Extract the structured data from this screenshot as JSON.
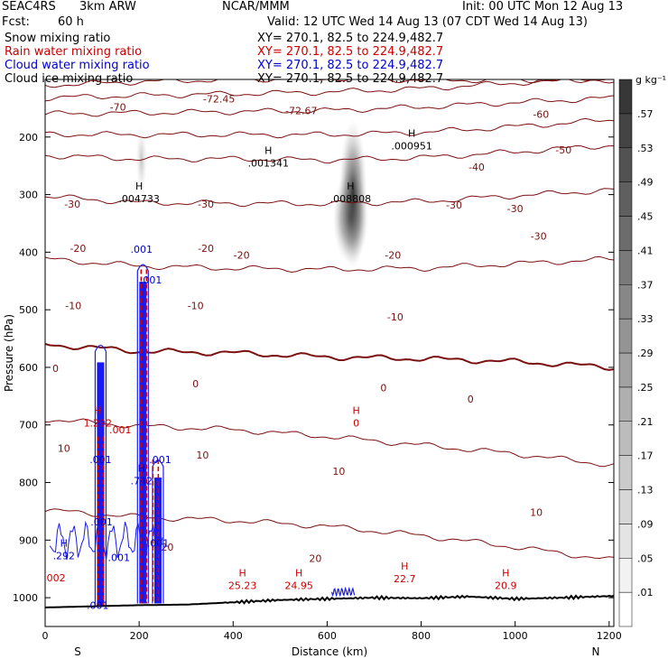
{
  "header": {
    "project": "SEAC4RS",
    "model": "3km ARW",
    "org": "NCAR/MMM",
    "init": "Init: 00 UTC Mon 12 Aug 13",
    "fcst_label": "Fcst:",
    "fcst_value": "60 h",
    "valid": "Valid: 12 UTC Wed 14 Aug 13 (07 CDT Wed 14 Aug 13)"
  },
  "fields": [
    {
      "name": "Snow mixing ratio",
      "xy": "XY= 270.1, 82.5 to 224.9,482.7",
      "color": "#000000"
    },
    {
      "name": "Rain water mixing ratio",
      "xy": "XY= 270.1, 82.5 to 224.9,482.7",
      "color": "#cc0000"
    },
    {
      "name": "Cloud water mixing ratio",
      "xy": "XY= 270.1, 82.5 to 224.9,482.7",
      "color": "#0000cc"
    },
    {
      "name": "Cloud ice mixing ratio",
      "xy": "XY= 270.1, 82.5 to 224.9,482.7",
      "color": "#000000"
    }
  ],
  "chart_data": {
    "type": "cross-section",
    "xlabel": "Distance (km)",
    "ylabel": "Pressure (hPa)",
    "xlim": [
      0,
      1210
    ],
    "ylim": [
      100,
      1050
    ],
    "x_ticks": [
      0,
      200,
      400,
      600,
      800,
      1000,
      1200
    ],
    "y_ticks": [
      200,
      300,
      400,
      500,
      600,
      700,
      800,
      900,
      1000
    ],
    "endpoints": {
      "left": "S",
      "right": "N"
    },
    "colorbar": {
      "unit": "g kg⁻¹",
      "levels": [
        ".01",
        ".05",
        ".09",
        ".13",
        ".17",
        ".21",
        ".25",
        ".29",
        ".33",
        ".37",
        ".41",
        ".45",
        ".49",
        ".53",
        ".57"
      ]
    },
    "temperature_contours": [
      {
        "label": "-70",
        "values": [
          [
            0,
            110
          ],
          [
            200,
            104
          ],
          [
            400,
            100
          ],
          [
            600,
            98
          ],
          [
            800,
            101
          ]
        ]
      },
      {
        "label": "-60",
        "values": [
          [
            0,
            132
          ],
          [
            200,
            128
          ],
          [
            400,
            125
          ],
          [
            600,
            122
          ],
          [
            800,
            116
          ],
          [
            1000,
            106
          ],
          [
            1210,
            98
          ]
        ]
      },
      {
        "label": "-50",
        "values": [
          [
            0,
            160
          ],
          [
            200,
            158
          ],
          [
            400,
            156
          ],
          [
            600,
            154
          ],
          [
            800,
            148
          ],
          [
            1000,
            140
          ],
          [
            1210,
            132
          ]
        ]
      },
      {
        "label": "-40",
        "values": [
          [
            0,
            195
          ],
          [
            200,
            196
          ],
          [
            400,
            196
          ],
          [
            600,
            196
          ],
          [
            800,
            192
          ],
          [
            1000,
            182
          ],
          [
            1210,
            170
          ]
        ]
      },
      {
        "label": "-30",
        "values": [
          [
            0,
            232
          ],
          [
            200,
            238
          ],
          [
            400,
            238
          ],
          [
            600,
            240
          ],
          [
            800,
            236
          ],
          [
            1000,
            226
          ],
          [
            1210,
            214
          ]
        ]
      },
      {
        "label": "-20",
        "values": [
          [
            0,
            303
          ],
          [
            200,
            314
          ],
          [
            400,
            315
          ],
          [
            600,
            316
          ],
          [
            800,
            312
          ],
          [
            1000,
            302
          ],
          [
            1210,
            292
          ]
        ]
      },
      {
        "label": "-10",
        "values": [
          [
            0,
            412
          ],
          [
            200,
            424
          ],
          [
            400,
            428
          ],
          [
            600,
            430
          ],
          [
            800,
            428
          ],
          [
            1000,
            420
          ],
          [
            1210,
            412
          ]
        ]
      },
      {
        "label": "0",
        "values": [
          [
            0,
            560
          ],
          [
            200,
            572
          ],
          [
            400,
            575
          ],
          [
            600,
            582
          ],
          [
            800,
            585
          ],
          [
            1000,
            590
          ],
          [
            1210,
            600
          ]
        ]
      },
      {
        "label": "10",
        "values": [
          [
            0,
            690
          ],
          [
            200,
            702
          ],
          [
            400,
            708
          ],
          [
            600,
            720
          ],
          [
            800,
            735
          ],
          [
            1000,
            750
          ],
          [
            1210,
            770
          ]
        ]
      },
      {
        "label": "20",
        "values": [
          [
            0,
            848
          ],
          [
            200,
            860
          ],
          [
            400,
            866
          ],
          [
            600,
            876
          ],
          [
            800,
            892
          ],
          [
            1000,
            912
          ],
          [
            1210,
            935
          ]
        ]
      }
    ],
    "temperature_labels": [
      {
        "text": "-72.45",
        "x": 370,
        "y": 134
      },
      {
        "text": "-72.67",
        "x": 545,
        "y": 154
      },
      {
        "text": "-70",
        "x": 155,
        "y": 148
      },
      {
        "text": "-60",
        "x": 1055,
        "y": 160
      },
      {
        "text": "-50",
        "x": 1103,
        "y": 222
      },
      {
        "text": "-40",
        "x": 918,
        "y": 252
      },
      {
        "text": "-30",
        "x": 58,
        "y": 316
      },
      {
        "text": "-30",
        "x": 342,
        "y": 316
      },
      {
        "text": "-30",
        "x": 870,
        "y": 318
      },
      {
        "text": "-30",
        "x": 1000,
        "y": 324
      },
      {
        "text": "-30",
        "x": 1050,
        "y": 372
      },
      {
        "text": "-20",
        "x": 70,
        "y": 393
      },
      {
        "text": "-20",
        "x": 342,
        "y": 393
      },
      {
        "text": "-20",
        "x": 418,
        "y": 405
      },
      {
        "text": "-20",
        "x": 740,
        "y": 405
      },
      {
        "text": "-10",
        "x": 60,
        "y": 493
      },
      {
        "text": "-10",
        "x": 320,
        "y": 493
      },
      {
        "text": "-10",
        "x": 745,
        "y": 512
      },
      {
        "text": "0",
        "x": 22,
        "y": 602
      },
      {
        "text": "0",
        "x": 320,
        "y": 628
      },
      {
        "text": "0",
        "x": 720,
        "y": 635
      },
      {
        "text": "0",
        "x": 905,
        "y": 655
      },
      {
        "text": "10",
        "x": 40,
        "y": 740
      },
      {
        "text": "10",
        "x": 335,
        "y": 752
      },
      {
        "text": "10",
        "x": 625,
        "y": 780
      },
      {
        "text": "10",
        "x": 1045,
        "y": 852
      },
      {
        "text": "20",
        "x": 260,
        "y": 912
      },
      {
        "text": "20",
        "x": 575,
        "y": 932
      }
    ],
    "surface_pressure": [
      [
        0,
        1017
      ],
      [
        100,
        1015
      ],
      [
        200,
        1013
      ],
      [
        300,
        1012
      ],
      [
        400,
        1008
      ],
      [
        500,
        1004
      ],
      [
        600,
        1002
      ],
      [
        700,
        1000
      ],
      [
        800,
        1001
      ],
      [
        900,
        998
      ],
      [
        1000,
        1002
      ],
      [
        1100,
        1000
      ],
      [
        1210,
        997
      ]
    ],
    "highs": [
      {
        "label": "H",
        "value": ".004733",
        "x": 200,
        "y": 310,
        "color": "#000000"
      },
      {
        "label": "H",
        "value": ".001341",
        "x": 475,
        "y": 248,
        "color": "#000000"
      },
      {
        "label": "H",
        "value": ".000951",
        "x": 780,
        "y": 218,
        "color": "#000000"
      },
      {
        "label": "H",
        "value": ".008808",
        "x": 650,
        "y": 310,
        "color": "#000000"
      },
      {
        "label": "H",
        "value": "25.23",
        "x": 420,
        "y": 982,
        "color": "#cc0000"
      },
      {
        "label": "H",
        "value": "24.95",
        "x": 540,
        "y": 982,
        "color": "#cc0000"
      },
      {
        "label": "H",
        "value": "22.7",
        "x": 765,
        "y": 970,
        "color": "#cc0000"
      },
      {
        "label": "H",
        "value": "20.9",
        "x": 980,
        "y": 982,
        "color": "#cc0000"
      },
      {
        "label": "H",
        "value": "0",
        "x": 662,
        "y": 700,
        "color": "#cc0000"
      },
      {
        "label": "H",
        "value": "1.292",
        "x": 112,
        "y": 700,
        "color": "#cc0000"
      },
      {
        "label": "H",
        "value": ".742",
        "x": 205,
        "y": 800,
        "color": "#0000cc"
      },
      {
        "label": "H",
        "value": ".292",
        "x": 40,
        "y": 930,
        "color": "#0000cc"
      }
    ],
    "value_labels": [
      {
        "text": ".001",
        "x": 205,
        "y": 395,
        "color": "#0000cc"
      },
      {
        "text": ".001",
        "x": 225,
        "y": 448,
        "color": "#0000cc"
      },
      {
        "text": ".001",
        "x": 160,
        "y": 708,
        "color": "#cc0000"
      },
      {
        "text": ".001",
        "x": 118,
        "y": 760,
        "color": "#0000cc"
      },
      {
        "text": ".001",
        "x": 245,
        "y": 760,
        "color": "#0000cc"
      },
      {
        "text": ".001",
        "x": 120,
        "y": 868,
        "color": "#0000cc"
      },
      {
        "text": ".001",
        "x": 240,
        "y": 905,
        "color": "#0000cc"
      },
      {
        "text": ".001",
        "x": 157,
        "y": 930,
        "color": "#0000cc"
      },
      {
        "text": ".002",
        "x": 20,
        "y": 965,
        "color": "#cc0000"
      },
      {
        "text": ".001",
        "x": 112,
        "y": 1013,
        "color": "#0000cc"
      }
    ],
    "shading": [
      {
        "x": 650,
        "p": 340,
        "rx": 38,
        "rp": 80,
        "value": ".45"
      },
      {
        "x": 655,
        "p": 300,
        "rx": 30,
        "rp": 130,
        "value": ".21"
      },
      {
        "x": 205,
        "p": 240,
        "rx": 12,
        "rp": 60,
        "value": ".05"
      }
    ],
    "cloud_water_towers": [
      {
        "x": 118,
        "top": 560,
        "bottom": 1013
      },
      {
        "x": 208,
        "top": 420,
        "bottom": 1010
      },
      {
        "x": 240,
        "top": 760,
        "bottom": 1010
      }
    ],
    "rain_columns": [
      {
        "x": 118,
        "top": 720,
        "bottom": 1013
      },
      {
        "x": 210,
        "top": 430,
        "bottom": 1010
      },
      {
        "x": 235,
        "top": 760,
        "bottom": 1010
      }
    ]
  }
}
